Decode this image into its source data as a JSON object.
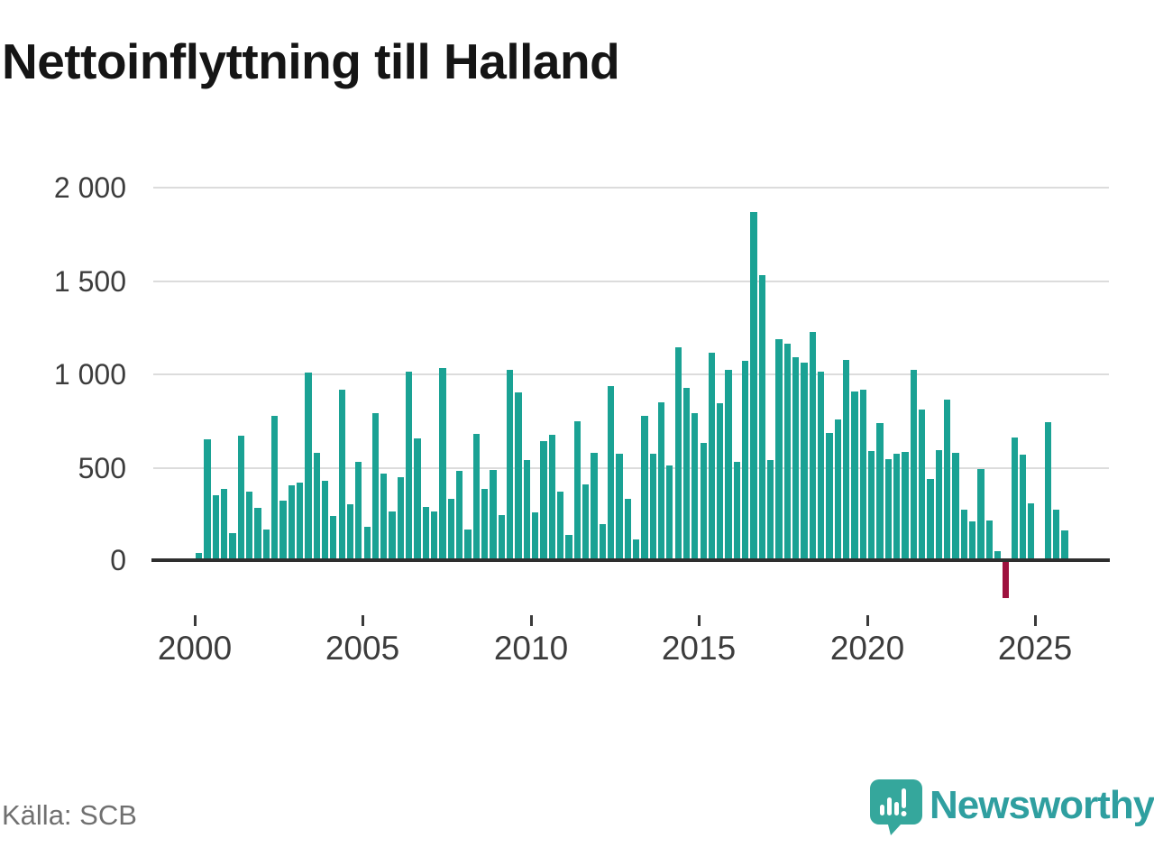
{
  "title": "Nettoinflyttning till Halland",
  "source": "Källa: SCB",
  "logo": {
    "brand": "Newsworthy"
  },
  "chart_data": {
    "type": "bar",
    "title": "Nettoinflyttning till Halland",
    "frequency": "quarterly",
    "start": "2000 Q1",
    "end": "2025 Q4",
    "xlabel": "",
    "ylabel": "",
    "x_tick_labels": [
      "2000",
      "2005",
      "2010",
      "2015",
      "2020",
      "2025"
    ],
    "y_ticks": [
      2000,
      1500,
      1000,
      500,
      0
    ],
    "y_tick_labels": [
      "2 000",
      "1 500",
      "1 000",
      "500",
      "0"
    ],
    "ylim": [
      -300,
      2050
    ],
    "grid": "horizontal",
    "legend": "none",
    "positive_color": "#1aa294",
    "negative_color": "#9e113e",
    "values": [
      40,
      650,
      350,
      385,
      145,
      670,
      370,
      280,
      165,
      775,
      320,
      400,
      415,
      1010,
      575,
      425,
      235,
      915,
      300,
      530,
      180,
      790,
      465,
      260,
      445,
      1015,
      655,
      285,
      260,
      1030,
      330,
      480,
      165,
      680,
      385,
      485,
      240,
      1020,
      900,
      540,
      255,
      640,
      675,
      370,
      135,
      745,
      405,
      575,
      195,
      935,
      570,
      330,
      110,
      775,
      570,
      850,
      510,
      1145,
      925,
      790,
      630,
      1115,
      845,
      1020,
      530,
      1070,
      1870,
      1530,
      540,
      1185,
      1165,
      1090,
      1060,
      1225,
      1015,
      685,
      755,
      1075,
      905,
      915,
      585,
      735,
      545,
      570,
      580,
      1020,
      810,
      435,
      590,
      860,
      575,
      270,
      210,
      490,
      215,
      50,
      -205,
      660,
      565,
      305,
      0,
      740,
      270,
      160
    ]
  }
}
